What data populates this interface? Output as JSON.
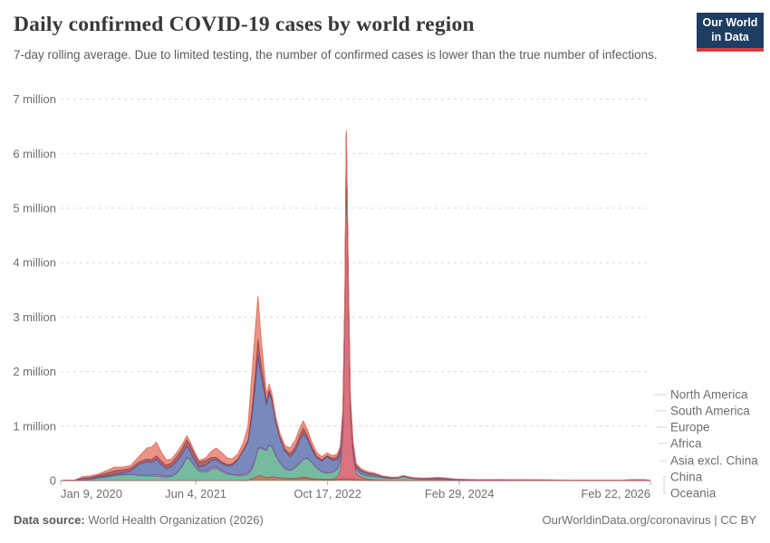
{
  "header": {
    "title": "Daily confirmed COVID-19 cases by world region",
    "subtitle": "7-day rolling average. Due to limited testing, the number of confirmed cases is lower than the true number of infections.",
    "logo": {
      "line1": "Our World",
      "line2": "in Data",
      "bg_color": "#1d3d63",
      "accent_color": "#d73a3a"
    }
  },
  "footer": {
    "source_label": "Data source:",
    "source_text": " World Health Organization (2026)",
    "right_text": "OurWorldinData.org/coronavirus | CC BY"
  },
  "chart_data": {
    "type": "area",
    "stacked": true,
    "grid": true,
    "legend_position": "right",
    "ylabel": "",
    "xlabel": "",
    "ylim": [
      0,
      7
    ],
    "xlim_days": [
      0,
      2236
    ],
    "x_epoch": "days since Jan 9, 2020",
    "y_ticks": [
      {
        "value": 0,
        "label": "0"
      },
      {
        "value": 1,
        "label": "1 million"
      },
      {
        "value": 2,
        "label": "2 million"
      },
      {
        "value": 3,
        "label": "3 million"
      },
      {
        "value": 4,
        "label": "4 million"
      },
      {
        "value": 5,
        "label": "5 million"
      },
      {
        "value": 6,
        "label": "6 million"
      },
      {
        "value": 7,
        "label": "7 million"
      }
    ],
    "x_ticks": [
      {
        "day": 0,
        "label": "Jan 9, 2020"
      },
      {
        "day": 512,
        "label": "Jun 4, 2021"
      },
      {
        "day": 1012,
        "label": "Oct 17, 2022"
      },
      {
        "day": 1512,
        "label": "Feb 29, 2024"
      },
      {
        "day": 2236,
        "label": "Feb 22, 2026"
      }
    ],
    "unit": "million cases per day (7-day rolling average)",
    "days": [
      0,
      23,
      52,
      83,
      113,
      144,
      174,
      205,
      236,
      266,
      297,
      327,
      345,
      363,
      380,
      400,
      420,
      440,
      460,
      478,
      490,
      509,
      525,
      550,
      570,
      590,
      610,
      631,
      650,
      672,
      692,
      710,
      725,
      737,
      748,
      758,
      768,
      780,
      790,
      800,
      815,
      830,
      850,
      870,
      890,
      905,
      920,
      935,
      950,
      970,
      990,
      1010,
      1030,
      1048,
      1060,
      1070,
      1078,
      1083,
      1090,
      1098,
      1108,
      1120,
      1140,
      1165,
      1190,
      1220,
      1250,
      1280,
      1298,
      1315,
      1340,
      1370,
      1400,
      1430,
      1460,
      1490,
      1530,
      1590,
      1660,
      1740,
      1830,
      1930,
      2030,
      2130,
      2190,
      2236
    ],
    "series": [
      {
        "name": "Oceania",
        "color": "#9e5a32",
        "values": [
          0,
          0,
          0,
          0,
          0,
          0,
          0,
          0,
          0,
          0,
          0,
          0,
          0,
          0,
          0,
          0,
          0,
          0,
          0,
          0,
          0,
          0,
          0,
          0,
          0.0005,
          0.0005,
          0.0005,
          0.0005,
          0.0005,
          0.0005,
          0.001,
          0.005,
          0.03,
          0.06,
          0.09,
          0.09,
          0.07,
          0.05,
          0.06,
          0.07,
          0.06,
          0.05,
          0.04,
          0.035,
          0.035,
          0.04,
          0.05,
          0.04,
          0.03,
          0.02,
          0.015,
          0.015,
          0.015,
          0.02,
          0.025,
          0.03,
          0.03,
          0.03,
          0.03,
          0.025,
          0.02,
          0.012,
          0.008,
          0.005,
          0.003,
          0.002,
          0.001,
          0.001,
          0.001,
          0.001,
          0.001,
          0.001,
          0.001,
          0.001,
          0.001,
          0.001,
          0.001,
          0.0005,
          0.0005,
          0.0005,
          0.0005,
          0.0003,
          0.0003,
          0.0003,
          0.0003,
          0.0002
        ]
      },
      {
        "name": "China",
        "color": "#ce4356",
        "values": [
          0.001,
          0.004,
          0.002,
          0.0005,
          0.0002,
          0.0002,
          0.0002,
          0.0002,
          0.0002,
          0.0002,
          0.0002,
          0.0002,
          0.0002,
          0.0002,
          0.0002,
          0.0002,
          0.0002,
          0.0002,
          0.0002,
          0.0002,
          0.0002,
          0.0002,
          0.0002,
          0.0002,
          0.0002,
          0.0002,
          0.0002,
          0.0002,
          0.0002,
          0.0002,
          0.0002,
          0.0002,
          0.0002,
          0.0002,
          0.0002,
          0.0005,
          0.001,
          0.001,
          0.001,
          0.001,
          0.001,
          0.001,
          0.002,
          0.005,
          0.005,
          0.01,
          0.015,
          0.015,
          0.01,
          0.01,
          0.01,
          0.01,
          0.015,
          0.04,
          0.15,
          0.8,
          3.0,
          5.9,
          3.4,
          1.2,
          0.45,
          0.12,
          0.05,
          0.02,
          0.01,
          0.005,
          0.004,
          0.003,
          0.003,
          0.002,
          0.002,
          0.002,
          0.002,
          0.002,
          0.002,
          0.001,
          0.001,
          0.001,
          0.001,
          0.001,
          0.0005,
          0.0005,
          0.0005,
          0.0005,
          0.001,
          0.0005
        ]
      },
      {
        "name": "Asia excl. China",
        "color": "#48a47f",
        "values": [
          0,
          0.001,
          0.002,
          0.008,
          0.02,
          0.045,
          0.06,
          0.08,
          0.1,
          0.11,
          0.09,
          0.085,
          0.08,
          0.075,
          0.065,
          0.06,
          0.07,
          0.13,
          0.25,
          0.42,
          0.38,
          0.25,
          0.17,
          0.15,
          0.2,
          0.22,
          0.16,
          0.12,
          0.1,
          0.09,
          0.09,
          0.1,
          0.16,
          0.3,
          0.47,
          0.5,
          0.5,
          0.5,
          0.58,
          0.55,
          0.4,
          0.28,
          0.17,
          0.14,
          0.2,
          0.26,
          0.32,
          0.35,
          0.3,
          0.2,
          0.13,
          0.11,
          0.12,
          0.14,
          0.17,
          0.2,
          0.23,
          0.25,
          0.23,
          0.18,
          0.12,
          0.07,
          0.06,
          0.055,
          0.06,
          0.045,
          0.035,
          0.04,
          0.07,
          0.05,
          0.03,
          0.02,
          0.018,
          0.02,
          0.015,
          0.01,
          0.007,
          0.006,
          0.007,
          0.005,
          0.004,
          0.003,
          0.003,
          0.004,
          0.012,
          0.003
        ]
      },
      {
        "name": "Africa",
        "color": "#9c50a0",
        "values": [
          0,
          0,
          0,
          0.001,
          0.003,
          0.006,
          0.012,
          0.018,
          0.012,
          0.008,
          0.008,
          0.012,
          0.02,
          0.04,
          0.035,
          0.02,
          0.012,
          0.01,
          0.01,
          0.01,
          0.01,
          0.012,
          0.018,
          0.03,
          0.04,
          0.04,
          0.03,
          0.02,
          0.012,
          0.01,
          0.03,
          0.045,
          0.04,
          0.035,
          0.03,
          0.025,
          0.02,
          0.015,
          0.012,
          0.01,
          0.008,
          0.006,
          0.005,
          0.005,
          0.006,
          0.007,
          0.007,
          0.006,
          0.005,
          0.004,
          0.003,
          0.003,
          0.003,
          0.003,
          0.003,
          0.003,
          0.003,
          0.003,
          0.003,
          0.002,
          0.002,
          0.002,
          0.002,
          0.002,
          0.002,
          0.001,
          0.001,
          0.001,
          0.001,
          0.001,
          0.001,
          0.001,
          0.001,
          0.001,
          0.001,
          0.001,
          0.001,
          0.0005,
          0.0005,
          0.0005,
          0.0005,
          0.0003,
          0.0003,
          0.0003,
          0.0003,
          0.0003
        ]
      },
      {
        "name": "Europe",
        "color": "#4c62a5",
        "values": [
          0,
          0,
          0.002,
          0.032,
          0.024,
          0.017,
          0.015,
          0.018,
          0.028,
          0.06,
          0.2,
          0.25,
          0.23,
          0.27,
          0.2,
          0.14,
          0.17,
          0.21,
          0.22,
          0.2,
          0.15,
          0.09,
          0.055,
          0.1,
          0.12,
          0.125,
          0.12,
          0.13,
          0.17,
          0.28,
          0.42,
          0.55,
          0.95,
          1.3,
          1.7,
          1.35,
          1.15,
          0.82,
          0.95,
          0.85,
          0.6,
          0.45,
          0.32,
          0.25,
          0.3,
          0.4,
          0.47,
          0.35,
          0.25,
          0.18,
          0.2,
          0.3,
          0.22,
          0.17,
          0.15,
          0.14,
          0.14,
          0.13,
          0.11,
          0.09,
          0.07,
          0.055,
          0.05,
          0.045,
          0.035,
          0.018,
          0.012,
          0.01,
          0.01,
          0.01,
          0.012,
          0.015,
          0.02,
          0.025,
          0.02,
          0.012,
          0.008,
          0.005,
          0.006,
          0.005,
          0.004,
          0.003,
          0.002,
          0.002,
          0.003,
          0.002
        ]
      },
      {
        "name": "South America",
        "color": "#8d333d",
        "values": [
          0,
          0,
          0,
          0.004,
          0.012,
          0.03,
          0.05,
          0.065,
          0.06,
          0.05,
          0.045,
          0.05,
          0.055,
          0.07,
          0.065,
          0.06,
          0.07,
          0.09,
          0.1,
          0.115,
          0.12,
          0.12,
          0.1,
          0.09,
          0.06,
          0.04,
          0.033,
          0.027,
          0.023,
          0.02,
          0.028,
          0.04,
          0.12,
          0.22,
          0.31,
          0.24,
          0.15,
          0.07,
          0.06,
          0.05,
          0.04,
          0.035,
          0.04,
          0.06,
          0.08,
          0.1,
          0.1,
          0.07,
          0.05,
          0.035,
          0.025,
          0.02,
          0.035,
          0.06,
          0.07,
          0.07,
          0.065,
          0.06,
          0.05,
          0.04,
          0.03,
          0.02,
          0.015,
          0.01,
          0.008,
          0.004,
          0.003,
          0.002,
          0.002,
          0.002,
          0.002,
          0.002,
          0.002,
          0.003,
          0.003,
          0.002,
          0.001,
          0.001,
          0.001,
          0.001,
          0.001,
          0.0005,
          0.0005,
          0.0005,
          0.0005,
          0.0005
        ]
      },
      {
        "name": "North America",
        "color": "#e2705c",
        "values": [
          0,
          0,
          0.001,
          0.025,
          0.028,
          0.025,
          0.045,
          0.067,
          0.045,
          0.05,
          0.1,
          0.2,
          0.23,
          0.25,
          0.17,
          0.1,
          0.07,
          0.075,
          0.075,
          0.075,
          0.06,
          0.04,
          0.025,
          0.045,
          0.11,
          0.17,
          0.17,
          0.12,
          0.09,
          0.09,
          0.12,
          0.25,
          0.65,
          0.8,
          0.78,
          0.5,
          0.3,
          0.13,
          0.1,
          0.09,
          0.07,
          0.06,
          0.07,
          0.1,
          0.12,
          0.13,
          0.13,
          0.11,
          0.09,
          0.07,
          0.055,
          0.05,
          0.05,
          0.05,
          0.055,
          0.06,
          0.06,
          0.06,
          0.055,
          0.05,
          0.045,
          0.035,
          0.03,
          0.025,
          0.02,
          0.01,
          0.008,
          0.006,
          0.006,
          0.006,
          0.006,
          0.005,
          0.005,
          0.006,
          0.006,
          0.004,
          0.003,
          0.002,
          0.002,
          0.002,
          0.001,
          0.001,
          0.001,
          0.001,
          0.001,
          0.001
        ]
      }
    ],
    "legend": [
      "North America",
      "South America",
      "Europe",
      "Africa",
      "Asia excl. China",
      "China",
      "Oceania"
    ],
    "style": {
      "grid_color": "#dcdcdc",
      "axis_color": "#b3b3b3",
      "tick_text_color": "#6e6e6e",
      "connector_color": "#d4d4d4"
    }
  }
}
